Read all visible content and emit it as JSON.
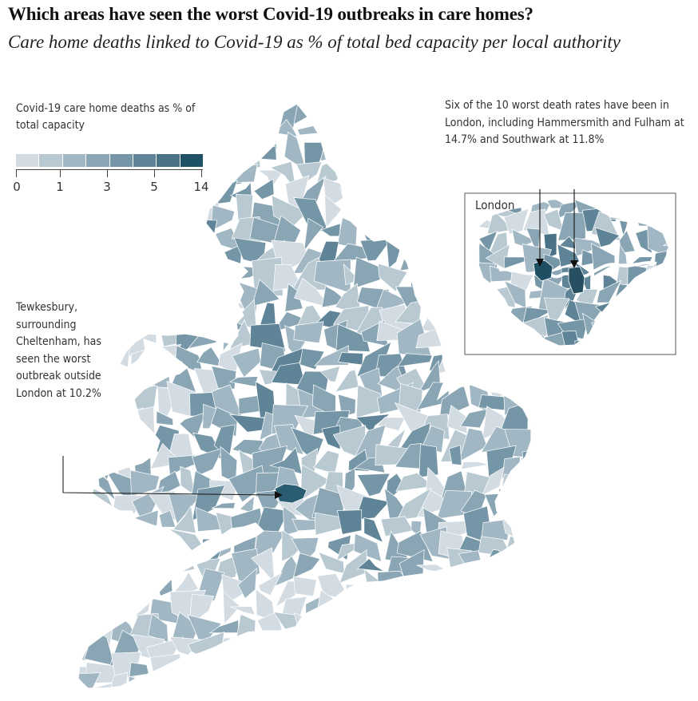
{
  "header": {
    "title": "Which areas have seen the worst Covid-19 outbreaks in care homes?",
    "subtitle": "Care home deaths linked to Covid-19 as % of total bed capacity per local authority"
  },
  "legend": {
    "title": "Covid-19 care home deaths as % of total capacity",
    "colors": [
      "#d3dce2",
      "#b9c9d2",
      "#a1b7c3",
      "#8aa6b4",
      "#7596a6",
      "#5f8497",
      "#4a7387",
      "#1f5267"
    ],
    "ticks": [
      {
        "label": "0",
        "value": 0
      },
      {
        "label": "1",
        "value": 1
      },
      {
        "label": "3",
        "value": 3
      },
      {
        "label": "5",
        "value": 5
      },
      {
        "label": "14",
        "value": 14
      }
    ]
  },
  "annotations": {
    "london_note": "Six of the 10 worst death rates have been in London, including Hammersmith and Fulham at 14.7% and Southwark at 11.8%",
    "tewkesbury_note": "Tewkesbury, surrounding Cheltenham, has seen the worst outbreak outside London at 10.2%"
  },
  "inset": {
    "label": "London"
  },
  "map": {
    "highlights": [
      {
        "area": "Hammersmith and Fulham",
        "value_pct": 14.7
      },
      {
        "area": "Southwark",
        "value_pct": 11.8
      },
      {
        "area": "Tewkesbury",
        "value_pct": 10.2
      }
    ]
  }
}
